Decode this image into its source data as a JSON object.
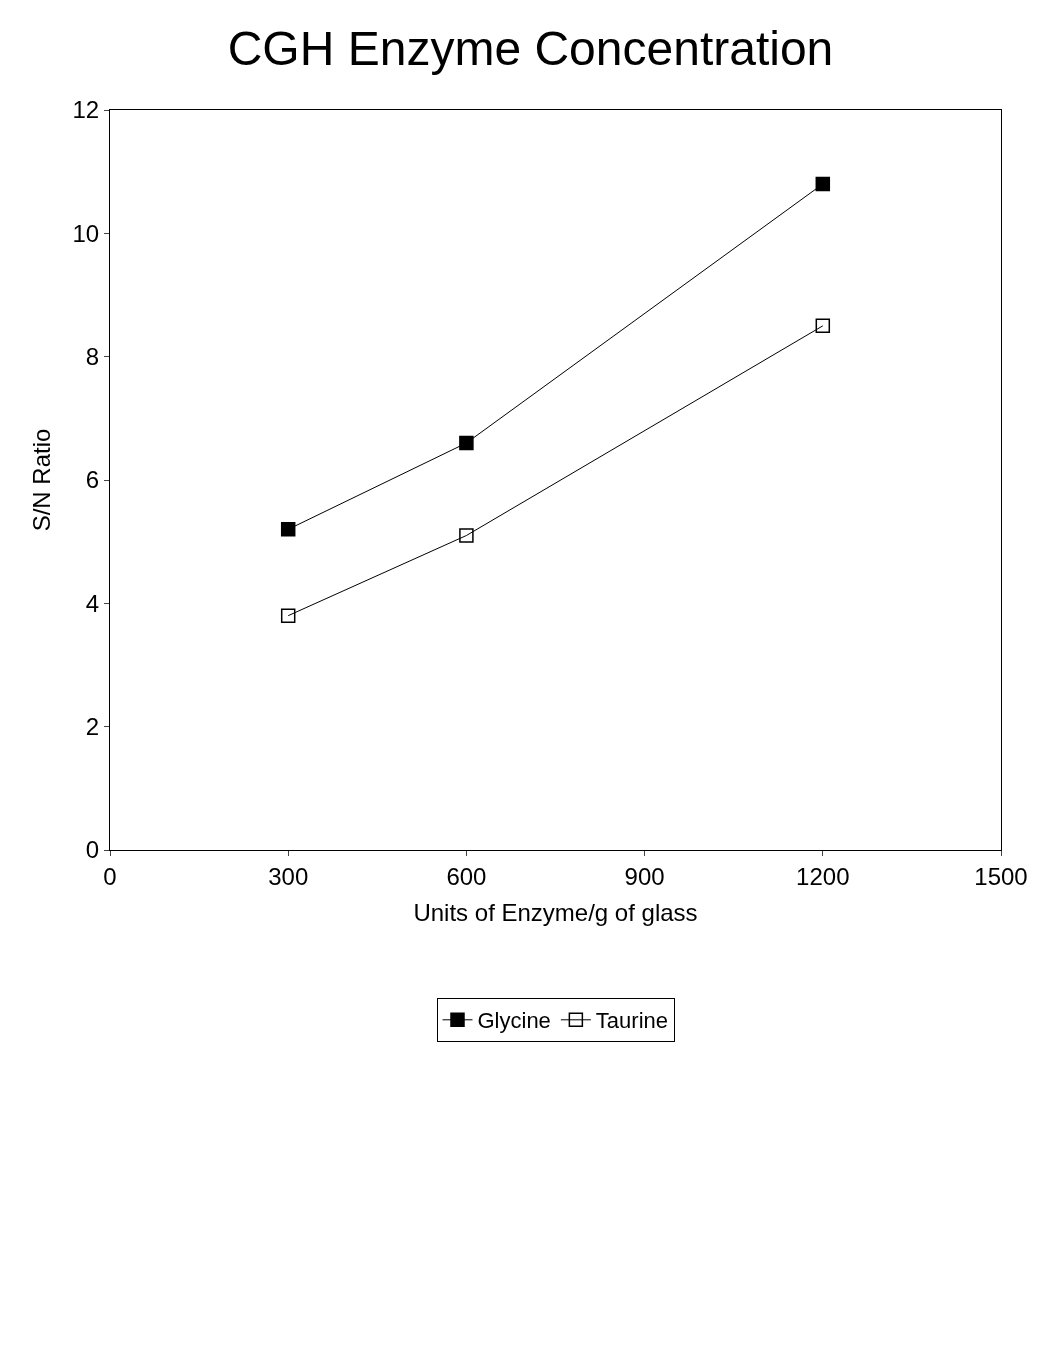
{
  "chart_data": {
    "type": "line",
    "title": "CGH Enzyme Concentration",
    "xlabel": "Units of Enzyme/g of glass",
    "ylabel": "S/N Ratio",
    "x": [
      300,
      600,
      1200
    ],
    "series": [
      {
        "name": "Glycine",
        "color": "#000000",
        "marker": "square",
        "values": [
          5.2,
          6.6,
          10.8
        ]
      },
      {
        "name": "Taurine",
        "color": "#000000",
        "marker": "square-open",
        "values": [
          3.8,
          5.1,
          8.5
        ]
      }
    ],
    "xlim": [
      0,
      1500
    ],
    "xticks": [
      0,
      300,
      600,
      900,
      1200,
      1500
    ],
    "ylim": [
      0,
      12
    ],
    "yticks": [
      0,
      2,
      4,
      6,
      8,
      10,
      12
    ],
    "legend": "bottom",
    "line_style": "solid"
  }
}
